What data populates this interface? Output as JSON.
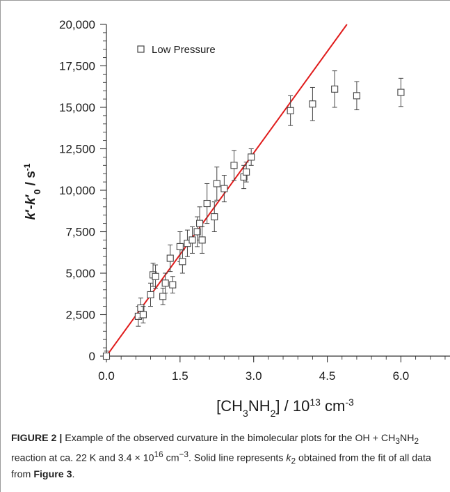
{
  "chart_data": {
    "type": "scatter",
    "legend": {
      "label": "Low Pressure",
      "marker": "open-square",
      "placement": "top-left"
    },
    "xlim": [
      0,
      7.0
    ],
    "ylim": [
      0,
      20000
    ],
    "x_ticks": [
      "0.0",
      "1.5",
      "3.0",
      "4.5",
      "6.0"
    ],
    "x_tick_values": [
      0,
      1.5,
      3.0,
      4.5,
      6.0
    ],
    "y_ticks": [
      "0",
      "2,500",
      "5,000",
      "7,500",
      "10,000",
      "12,500",
      "15,000",
      "17,500",
      "20,000"
    ],
    "y_tick_values": [
      0,
      2500,
      5000,
      7500,
      10000,
      12500,
      15000,
      17500,
      20000
    ],
    "series": [
      {
        "name": "Low Pressure",
        "points": [
          {
            "x": 0.0,
            "y": 0,
            "err": 300
          },
          {
            "x": 0.65,
            "y": 2400,
            "err": 600
          },
          {
            "x": 0.7,
            "y": 2900,
            "err": 600
          },
          {
            "x": 0.75,
            "y": 2500,
            "err": 500
          },
          {
            "x": 0.9,
            "y": 3700,
            "err": 700
          },
          {
            "x": 0.95,
            "y": 4900,
            "err": 700
          },
          {
            "x": 1.0,
            "y": 4800,
            "err": 700
          },
          {
            "x": 1.15,
            "y": 3600,
            "err": 500
          },
          {
            "x": 1.2,
            "y": 4400,
            "err": 600
          },
          {
            "x": 1.3,
            "y": 5900,
            "err": 800
          },
          {
            "x": 1.35,
            "y": 4300,
            "err": 500
          },
          {
            "x": 1.5,
            "y": 6600,
            "err": 900
          },
          {
            "x": 1.55,
            "y": 5700,
            "err": 700
          },
          {
            "x": 1.65,
            "y": 6800,
            "err": 800
          },
          {
            "x": 1.75,
            "y": 7000,
            "err": 800
          },
          {
            "x": 1.85,
            "y": 7500,
            "err": 900
          },
          {
            "x": 1.9,
            "y": 8000,
            "err": 1000
          },
          {
            "x": 1.95,
            "y": 7000,
            "err": 800
          },
          {
            "x": 2.05,
            "y": 9200,
            "err": 1200
          },
          {
            "x": 2.2,
            "y": 8400,
            "err": 900
          },
          {
            "x": 2.25,
            "y": 10400,
            "err": 1000
          },
          {
            "x": 2.4,
            "y": 10100,
            "err": 800
          },
          {
            "x": 2.6,
            "y": 11500,
            "err": 900
          },
          {
            "x": 2.8,
            "y": 10800,
            "err": 700
          },
          {
            "x": 2.85,
            "y": 11100,
            "err": 600
          },
          {
            "x": 2.95,
            "y": 12000,
            "err": 500
          },
          {
            "x": 3.75,
            "y": 14800,
            "err": 900
          },
          {
            "x": 4.2,
            "y": 15200,
            "err": 1000
          },
          {
            "x": 4.65,
            "y": 16100,
            "err": 1100
          },
          {
            "x": 5.1,
            "y": 15700,
            "err": 850
          },
          {
            "x": 6.0,
            "y": 15900,
            "err": 850
          }
        ]
      }
    ],
    "fit_line": {
      "x": [
        0,
        4.9
      ],
      "y": [
        0,
        20000
      ],
      "color": "#e01b1b"
    }
  },
  "axes": {
    "ylabel": {
      "k1": "k",
      "prime1": "′",
      "dash": "-",
      "k2": "k",
      "prime2": "′",
      "sub0": "0",
      "sep": " / ",
      "unit": "s",
      "sup": "-1"
    },
    "xlabel": {
      "open": "[CH",
      "sub3": "3",
      "nh": "NH",
      "sub2": "2",
      "close": "] / 10",
      "sup13": "13",
      "unit": " cm",
      "sup": "-3"
    }
  },
  "caption": {
    "label": "FIGURE 2 |",
    "t1": " Example of the observed curvature in the bimolecular plots for the OH + CH",
    "s1": "3",
    "t2": "NH",
    "s2": "2",
    "t3": " reaction at ca. 22 K and 3.4 × 10",
    "p1": "16",
    "t4": " cm",
    "p2": "−3",
    "t5": ". Solid line represents ",
    "k": "k",
    "ksub": "2",
    "t6": " obtained from the fit of all data from ",
    "ref": "Figure 3",
    "t7": "."
  },
  "colors": {
    "fit_line": "#e01b1b",
    "axis": "#333333",
    "marker": "#444444",
    "frame": "#9a9a9a"
  }
}
